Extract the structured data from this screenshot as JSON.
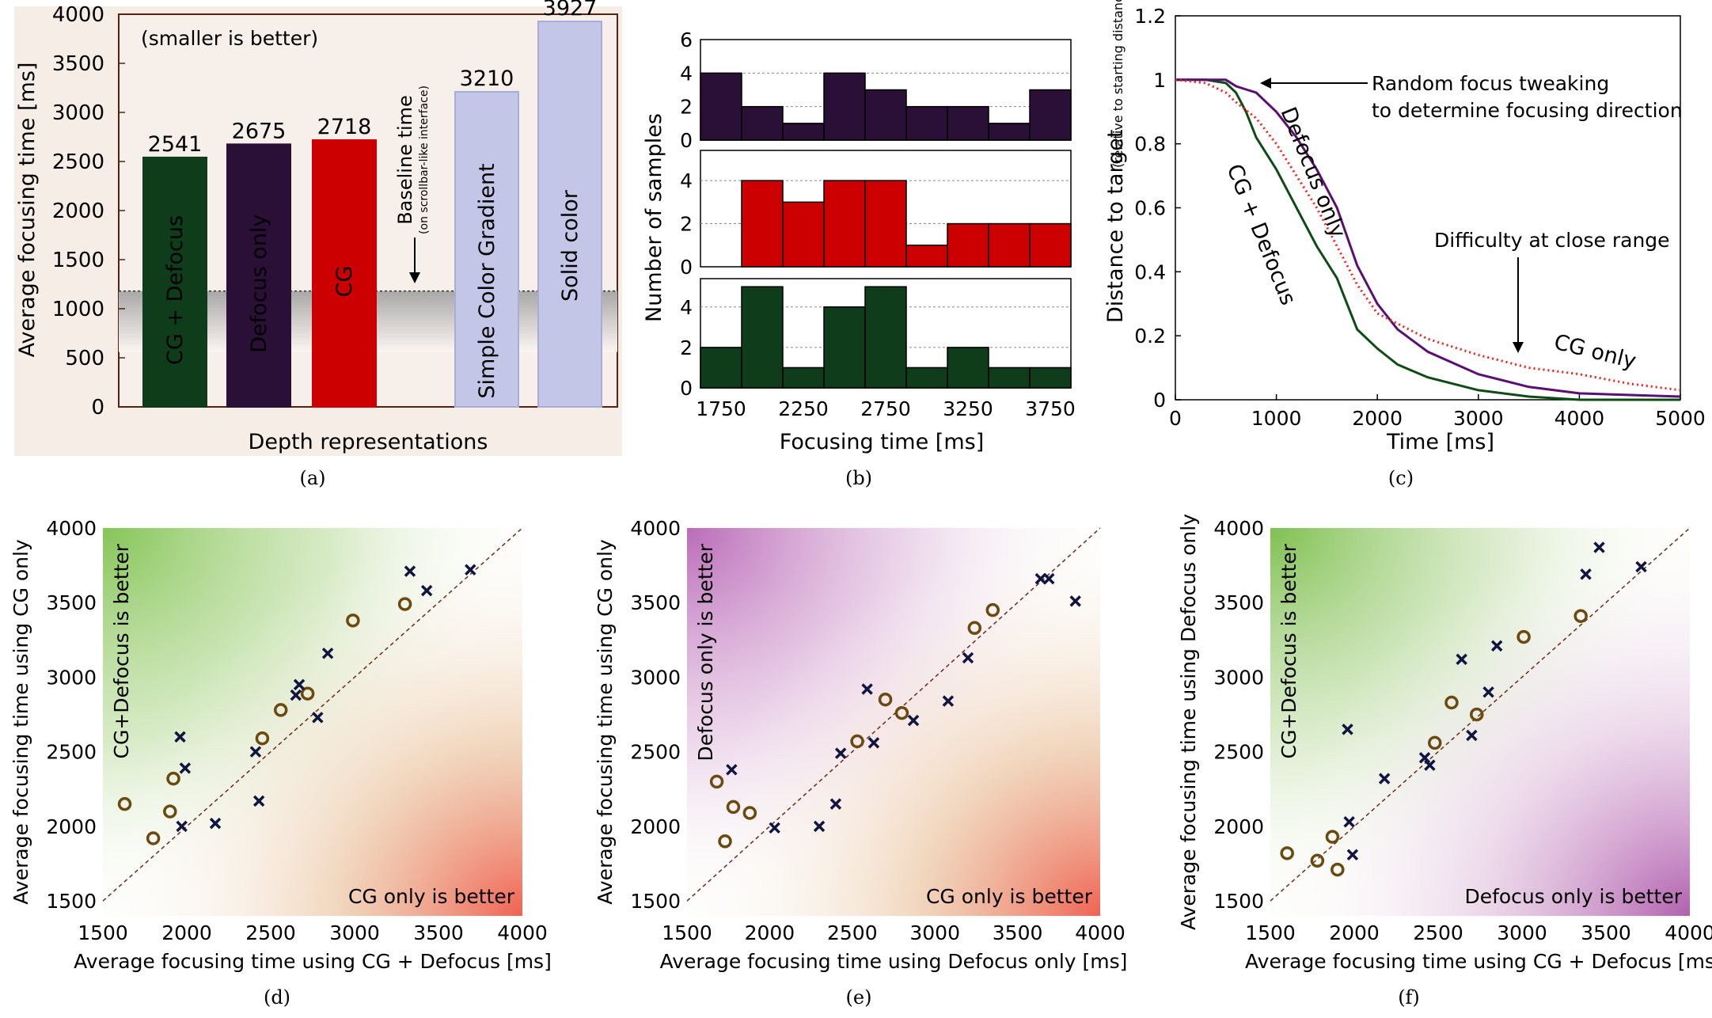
{
  "captions": [
    "(a)",
    "(b)",
    "(c)",
    "(d)",
    "(e)",
    "(f)"
  ],
  "colors": {
    "cg_defocus": "#0f3d1b",
    "defocus_only": "#2a1036",
    "cg_only": "#cc0000",
    "gradient_bar": "#c3c6e6",
    "curve_cg_defocus": "#0d4d14",
    "curve_defocus": "#5a0f73",
    "curve_cg": "#ff1a1a",
    "marker_circle": "#6b4a0f",
    "marker_cross": "#111640"
  },
  "chart_data": [
    {
      "type": "bar",
      "panel": "a",
      "title": "",
      "note": "(smaller is better)",
      "xlabel": "Depth representations",
      "ylabel": "Average focusing time [ms]",
      "ylim": [
        0,
        4000
      ],
      "yticks": [
        0,
        500,
        1000,
        1500,
        2000,
        2500,
        3000,
        3500,
        4000
      ],
      "categories": [
        "CG + Defocus",
        "Defocus only",
        "CG",
        "Simple Color Gradient",
        "Solid color"
      ],
      "values": [
        2541,
        2675,
        2718,
        3210,
        3927
      ],
      "value_labels": [
        "2541",
        "2675",
        "2718",
        "3210",
        "3927"
      ],
      "baseline": {
        "label": "Baseline time",
        "sublabel": "(on scrollbar-like interface)",
        "value": 1180
      }
    },
    {
      "type": "bar",
      "panel": "b",
      "xlabel": "Focusing time [ms]",
      "ylabel": "Number of samples",
      "xticks": [
        1750,
        2250,
        2750,
        3250,
        3750
      ],
      "bin_edges": [
        1625,
        1875,
        2125,
        2375,
        2625,
        2875,
        3125,
        3375,
        3625,
        3875
      ],
      "series": [
        {
          "counts": [
            4,
            2,
            1,
            4,
            3,
            2,
            2,
            1,
            3
          ],
          "yticks": [
            0,
            2,
            4,
            6
          ],
          "ylim": [
            0,
            6
          ]
        },
        {
          "counts": [
            0,
            4,
            3,
            4,
            4,
            1,
            2,
            2,
            2
          ],
          "yticks": [
            0,
            2,
            4
          ],
          "ylim": [
            0,
            5.4
          ]
        },
        {
          "counts": [
            2,
            5,
            1,
            4,
            5,
            1,
            2,
            1,
            1
          ],
          "yticks": [
            0,
            2,
            4
          ],
          "ylim": [
            0,
            5.4
          ]
        }
      ]
    },
    {
      "type": "line",
      "panel": "c",
      "xlabel": "Time [ms]",
      "ylabel": "Distance to target",
      "ylabel_sub": "(relative to starting distance)",
      "xlim": [
        0,
        5000
      ],
      "ylim": [
        0,
        1.2
      ],
      "xticks": [
        0,
        1000,
        2000,
        3000,
        4000,
        5000
      ],
      "yticks": [
        "0",
        "0.2",
        "0.4",
        "0.6",
        "0.8",
        "1",
        "1.2"
      ],
      "annotations": [
        "Random focus tweaking",
        "to determine focusing direction",
        "Difficulty at close range"
      ],
      "series": [
        {
          "name": "CG + Defocus",
          "x": [
            0,
            300,
            500,
            600,
            700,
            800,
            1000,
            1200,
            1400,
            1600,
            1700,
            1800,
            2000,
            2200,
            2500,
            3000,
            3500,
            4000,
            5000
          ],
          "y": [
            1,
            1,
            0.99,
            0.96,
            0.9,
            0.82,
            0.72,
            0.6,
            0.48,
            0.38,
            0.3,
            0.22,
            0.16,
            0.11,
            0.07,
            0.03,
            0.01,
            0.0,
            0.0
          ]
        },
        {
          "name": "Defocus only",
          "x": [
            0,
            300,
            500,
            600,
            700,
            800,
            1000,
            1200,
            1400,
            1600,
            1800,
            2000,
            2200,
            2500,
            3000,
            3500,
            4000,
            5000
          ],
          "y": [
            1,
            1,
            1.0,
            0.98,
            0.97,
            0.96,
            0.9,
            0.82,
            0.72,
            0.6,
            0.42,
            0.3,
            0.22,
            0.15,
            0.08,
            0.04,
            0.02,
            0.01
          ]
        },
        {
          "name": "CG only",
          "x": [
            0,
            300,
            500,
            600,
            800,
            1000,
            1200,
            1400,
            1600,
            1800,
            2000,
            2500,
            3000,
            3500,
            4000,
            4500,
            5000
          ],
          "y": [
            1,
            0.99,
            0.96,
            0.93,
            0.88,
            0.8,
            0.7,
            0.6,
            0.48,
            0.36,
            0.27,
            0.19,
            0.14,
            0.1,
            0.08,
            0.05,
            0.03
          ]
        }
      ]
    },
    {
      "type": "scatter",
      "panel": "d",
      "xlabel": "Average focusing time using CG + Defocus [ms]",
      "ylabel": "Average focusing time using CG only",
      "xlim": [
        1500,
        4000
      ],
      "ylim": [
        1400,
        4000
      ],
      "xticks": [
        1500,
        2000,
        2500,
        3000,
        3500,
        4000
      ],
      "yticks": [
        1500,
        2000,
        2500,
        3000,
        3500,
        4000
      ],
      "region_labels": [
        "CG+Defocus is better",
        "CG only is better"
      ],
      "circles": {
        "x": [
          1630,
          1800,
          1900,
          1920,
          2450,
          2560,
          2720,
          2990,
          3300
        ],
        "y": [
          2150,
          1920,
          2100,
          2320,
          2590,
          2780,
          2890,
          3380,
          3490
        ]
      },
      "crosses": {
        "x": [
          1960,
          1970,
          1990,
          2170,
          2410,
          2430,
          2650,
          2670,
          2780,
          2840,
          3330,
          3430,
          3690
        ],
        "y": [
          2600,
          2000,
          2390,
          2020,
          2500,
          2170,
          2880,
          2950,
          2730,
          3160,
          3710,
          3580,
          3720
        ]
      }
    },
    {
      "type": "scatter",
      "panel": "e",
      "xlabel": "Average focusing time using Defocus only [ms]",
      "ylabel": "Average focusing time using CG only",
      "xlim": [
        1500,
        4000
      ],
      "ylim": [
        1400,
        4000
      ],
      "xticks": [
        1500,
        2000,
        2500,
        3000,
        3500,
        4000
      ],
      "yticks": [
        1500,
        2000,
        2500,
        3000,
        3500,
        4000
      ],
      "region_labels": [
        "Defocus only is better",
        "CG only is better"
      ],
      "circles": {
        "x": [
          1680,
          1730,
          1780,
          1880,
          2530,
          2700,
          2800,
          3240,
          3350
        ],
        "y": [
          2300,
          1900,
          2130,
          2090,
          2570,
          2850,
          2760,
          3330,
          3450
        ]
      },
      "crosses": {
        "x": [
          1770,
          2030,
          2300,
          2400,
          2430,
          2590,
          2630,
          2870,
          3080,
          3200,
          3640,
          3690,
          3850
        ],
        "y": [
          2380,
          1990,
          2000,
          2150,
          2490,
          2920,
          2560,
          2710,
          2840,
          3130,
          3660,
          3660,
          3510
        ]
      }
    },
    {
      "type": "scatter",
      "panel": "f",
      "xlabel": "Average focusing time using CG + Defocus [ms",
      "ylabel": "Average focusing time using Defocus only",
      "xlim": [
        1500,
        4000
      ],
      "ylim": [
        1400,
        4000
      ],
      "xticks": [
        1500,
        2000,
        2500,
        3000,
        3500,
        4000
      ],
      "yticks": [
        1500,
        2000,
        2500,
        3000,
        3500,
        4000
      ],
      "region_labels": [
        "CG+Defocus is better",
        "Defocus only is better"
      ],
      "circles": {
        "x": [
          1600,
          1780,
          1870,
          1900,
          2480,
          2580,
          2730,
          3010,
          3350
        ],
        "y": [
          1820,
          1770,
          1930,
          1710,
          2560,
          2830,
          2750,
          3270,
          3410
        ]
      },
      "crosses": {
        "x": [
          1960,
          1970,
          1990,
          2180,
          2420,
          2450,
          2640,
          2700,
          2800,
          2850,
          3380,
          3460,
          3710
        ],
        "y": [
          2650,
          2030,
          1810,
          2320,
          2460,
          2410,
          3120,
          2610,
          2900,
          3210,
          3690,
          3870,
          3740
        ]
      }
    }
  ]
}
